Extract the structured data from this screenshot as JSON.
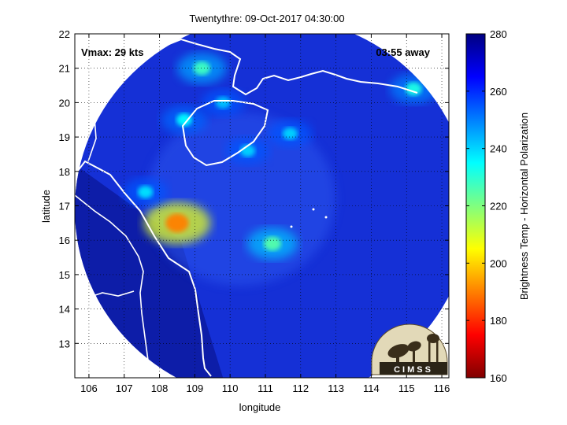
{
  "chart_data": {
    "type": "heatmap",
    "title": "Twentythre: 09-Oct-2017 04:30:00",
    "xlabel": "longitude",
    "ylabel": "latitude",
    "xlim": [
      105.6,
      116.2
    ],
    "ylim": [
      12.0,
      22.0
    ],
    "xticks": [
      "106",
      "107",
      "108",
      "109",
      "110",
      "111",
      "112",
      "113",
      "114",
      "115",
      "116"
    ],
    "yticks": [
      "13",
      "14",
      "15",
      "16",
      "17",
      "18",
      "19",
      "20",
      "21",
      "22"
    ],
    "grid": true,
    "annotations": {
      "vmax": "Vmax: 29 kts",
      "time_away": "03:55 away"
    },
    "colorbar": {
      "label": "Brightness Temp - Horizontal Polarization",
      "range": [
        160,
        280
      ],
      "ticks": [
        "160",
        "180",
        "200",
        "220",
        "240",
        "260",
        "280"
      ],
      "colormap": "jet"
    },
    "swath": {
      "center_lon": 111.2,
      "center_lat": 16.9,
      "radius_deg": 5.6
    },
    "features": [
      {
        "lon": 108.5,
        "lat": 16.5,
        "tb": 190
      },
      {
        "lon": 111.2,
        "lat": 15.9,
        "tb": 225
      },
      {
        "lon": 109.2,
        "lat": 21.0,
        "tb": 228
      },
      {
        "lon": 108.7,
        "lat": 19.5,
        "tb": 235
      },
      {
        "lon": 110.5,
        "lat": 18.6,
        "tb": 240
      },
      {
        "lon": 111.7,
        "lat": 19.1,
        "tb": 240
      },
      {
        "lon": 107.6,
        "lat": 17.4,
        "tb": 238
      },
      {
        "lon": 109.8,
        "lat": 20.0,
        "tb": 242
      },
      {
        "lon": 115.2,
        "lat": 20.4,
        "tb": 232
      }
    ],
    "logo": "CIMSS"
  }
}
